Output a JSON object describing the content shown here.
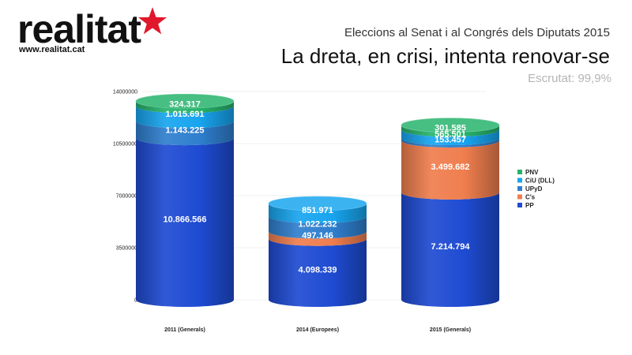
{
  "brand": {
    "name": "realitat",
    "url": "www.realitat.cat",
    "star_color": "#e0182b"
  },
  "header": {
    "subtitle": "Eleccions al Senat i al Congrés dels Diputats 2015",
    "title": "La dreta, en crisi, intenta renovar-se",
    "count": "Escrutat: 99,9%"
  },
  "chart_data": {
    "type": "bar",
    "stacked": true,
    "title": "",
    "xlabel": "",
    "ylabel": "",
    "ylim": [
      0,
      14000000
    ],
    "yticks": [
      0,
      3500000,
      7000000,
      10500000,
      14000000
    ],
    "grid": true,
    "legend_position": "right",
    "categories": [
      "2011 (Generals)",
      "2014 (Europees)",
      "2015 (Generals)"
    ],
    "series": [
      {
        "name": "PP",
        "color": "#1e4bd2",
        "values": [
          10866566,
          4098339,
          7214794
        ],
        "labels": [
          "10.866.566",
          "4.098.339",
          "7.214.794"
        ]
      },
      {
        "name": "C's",
        "color": "#ef7e4e",
        "values": [
          0,
          497146,
          3499682
        ],
        "labels": [
          "",
          "497.146",
          "3.499.682"
        ]
      },
      {
        "name": "UPyD",
        "color": "#2f7fce",
        "values": [
          1143225,
          1022232,
          153457
        ],
        "labels": [
          "1.143.225",
          "1.022.232",
          "153.457"
        ]
      },
      {
        "name": "CiU (DLL)",
        "color": "#18a5ef",
        "values": [
          1015691,
          851971,
          565501
        ],
        "labels": [
          "1.015.691",
          "851.971",
          "565.501"
        ]
      },
      {
        "name": "PNV",
        "color": "#27b36c",
        "values": [
          324317,
          0,
          301585
        ],
        "labels": [
          "324.317",
          "",
          "301.585"
        ]
      }
    ]
  }
}
